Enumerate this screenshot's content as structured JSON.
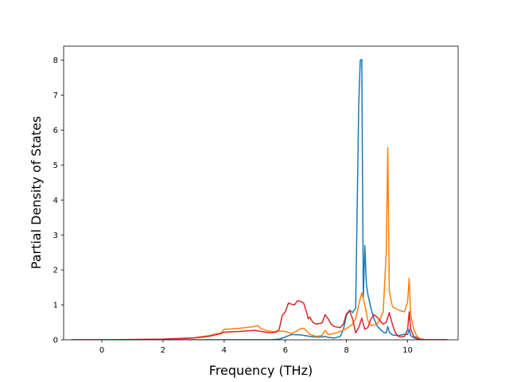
{
  "chart_data": {
    "type": "line",
    "title": "",
    "xlabel": "Frequency (THz)",
    "ylabel": "Partial Density of States",
    "xlim": [
      -1.25,
      11.65
    ],
    "ylim": [
      0,
      8.4
    ],
    "xticks": [
      0,
      2,
      4,
      6,
      8,
      10
    ],
    "yticks": [
      0,
      1,
      2,
      3,
      4,
      5,
      6,
      7,
      8
    ],
    "grid": false,
    "legend": "none",
    "series": [
      {
        "color": "#1f77b4",
        "x": [
          -1.0,
          0.0,
          3.0,
          5.5,
          5.8,
          6.0,
          6.2,
          6.5,
          6.8,
          7.0,
          7.2,
          7.3,
          7.4,
          7.6,
          7.8,
          7.9,
          8.0,
          8.1,
          8.2,
          8.3,
          8.4,
          8.45,
          8.5,
          8.55,
          8.6,
          8.65,
          8.7,
          8.75,
          8.8,
          8.9,
          9.0,
          9.1,
          9.2,
          9.3,
          9.35,
          9.4,
          9.5,
          9.7,
          9.9,
          10.0,
          10.05,
          10.1,
          10.2,
          10.3,
          10.5,
          11.3
        ],
        "values": [
          0.0,
          0.0,
          0.0,
          0.0,
          0.02,
          0.08,
          0.15,
          0.14,
          0.1,
          0.08,
          0.08,
          0.1,
          0.07,
          0.05,
          0.1,
          0.3,
          0.7,
          0.85,
          0.78,
          0.9,
          6.7,
          8.0,
          8.02,
          1.2,
          2.7,
          1.6,
          1.3,
          1.1,
          0.9,
          0.6,
          0.4,
          0.3,
          0.22,
          0.2,
          0.38,
          0.22,
          0.14,
          0.12,
          0.16,
          0.15,
          0.3,
          0.12,
          0.06,
          0.02,
          0.0,
          0.0
        ]
      },
      {
        "color": "#ff7f0e",
        "x": [
          -1.0,
          0.0,
          1.0,
          2.0,
          3.0,
          3.5,
          3.9,
          4.0,
          4.5,
          5.0,
          5.1,
          5.2,
          5.4,
          5.6,
          5.8,
          6.0,
          6.2,
          6.4,
          6.5,
          6.6,
          6.7,
          6.8,
          7.0,
          7.2,
          7.3,
          7.4,
          7.6,
          7.8,
          8.0,
          8.2,
          8.3,
          8.4,
          8.5,
          8.6,
          8.7,
          8.8,
          9.0,
          9.1,
          9.2,
          9.3,
          9.35,
          9.4,
          9.5,
          9.7,
          9.9,
          10.0,
          10.05,
          10.1,
          10.2,
          10.3,
          10.4,
          10.6,
          11.3
        ],
        "values": [
          0.0,
          0.0,
          0.0,
          0.02,
          0.06,
          0.12,
          0.2,
          0.3,
          0.33,
          0.38,
          0.41,
          0.32,
          0.26,
          0.23,
          0.25,
          0.24,
          0.18,
          0.26,
          0.32,
          0.33,
          0.25,
          0.16,
          0.1,
          0.12,
          0.27,
          0.15,
          0.18,
          0.24,
          0.32,
          0.45,
          0.6,
          1.0,
          1.35,
          1.0,
          0.55,
          0.4,
          0.45,
          0.6,
          0.8,
          2.5,
          5.5,
          1.4,
          0.95,
          0.85,
          0.8,
          1.1,
          1.76,
          0.7,
          0.3,
          0.1,
          0.03,
          0.0,
          0.0
        ]
      },
      {
        "color": "#d62728",
        "x": [
          -1.0,
          0.0,
          2.0,
          3.0,
          3.5,
          3.9,
          4.0,
          4.5,
          5.0,
          5.2,
          5.5,
          5.7,
          5.8,
          5.9,
          6.0,
          6.1,
          6.2,
          6.3,
          6.4,
          6.5,
          6.6,
          6.7,
          6.75,
          6.8,
          6.9,
          7.0,
          7.2,
          7.3,
          7.4,
          7.5,
          7.6,
          7.8,
          7.9,
          8.0,
          8.1,
          8.2,
          8.3,
          8.4,
          8.5,
          8.6,
          8.7,
          8.8,
          8.9,
          9.0,
          9.1,
          9.2,
          9.3,
          9.4,
          9.5,
          9.6,
          9.7,
          9.8,
          9.9,
          10.0,
          10.05,
          10.1,
          10.2,
          10.4,
          10.6,
          11.3
        ],
        "values": [
          0.0,
          0.0,
          0.02,
          0.05,
          0.1,
          0.18,
          0.22,
          0.24,
          0.27,
          0.24,
          0.2,
          0.22,
          0.3,
          0.7,
          0.8,
          1.05,
          1.02,
          1.0,
          1.12,
          1.1,
          1.05,
          0.78,
          0.6,
          0.65,
          0.5,
          0.45,
          0.48,
          0.72,
          0.6,
          0.45,
          0.38,
          0.35,
          0.45,
          0.75,
          0.82,
          0.6,
          0.2,
          0.35,
          0.62,
          0.3,
          0.35,
          0.6,
          0.72,
          0.65,
          0.55,
          0.45,
          0.5,
          0.78,
          0.45,
          0.2,
          0.1,
          0.08,
          0.1,
          0.3,
          0.8,
          0.3,
          0.1,
          0.02,
          0.0,
          0.0
        ]
      }
    ]
  }
}
